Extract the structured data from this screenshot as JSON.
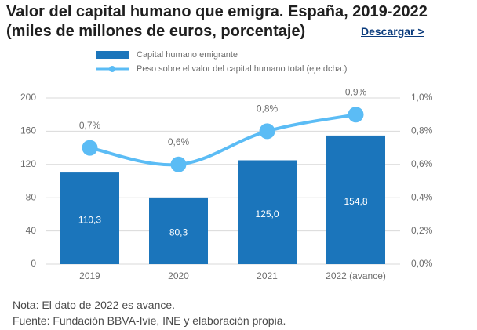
{
  "header": {
    "title_line1": "Valor del capital humano que emigra. España, 2019-2022",
    "title_line2": "(miles de millones de euros, porcentaje)",
    "download_label": "Descargar >"
  },
  "notes": {
    "note": "Nota: El dato de 2022 es avance.",
    "source": "Fuente:  Fundación BBVA-Ivie, INE y elaboración propia."
  },
  "colors": {
    "bar": "#1b75bb",
    "line": "#5bbcf5",
    "grid": "#d9d9d9",
    "axis_text": "#6d6d6d"
  },
  "chart_data": {
    "type": "bar",
    "categories": [
      "2019",
      "2020",
      "2021",
      "2022 (avance)"
    ],
    "series": [
      {
        "name": "Capital humano emigrante",
        "type": "bar",
        "axis": "left",
        "values": [
          110.3,
          80.3,
          125.0,
          154.8
        ],
        "labels": [
          "110,3",
          "80,3",
          "125,0",
          "154,8"
        ]
      },
      {
        "name": "Peso sobre el valor del capital humano total (eje dcha.)",
        "type": "line",
        "axis": "right",
        "values": [
          0.7,
          0.6,
          0.8,
          0.9
        ],
        "labels": [
          "0,7%",
          "0,6%",
          "0,8%",
          "0,9%"
        ]
      }
    ],
    "y_left": {
      "lim": [
        0,
        200
      ],
      "ticks": [
        0,
        40,
        80,
        120,
        160,
        200
      ],
      "tick_labels": [
        "0",
        "40",
        "80",
        "120",
        "160",
        "200"
      ]
    },
    "y_right": {
      "lim": [
        0,
        1.0
      ],
      "ticks": [
        0,
        0.2,
        0.4,
        0.6,
        0.8,
        1.0
      ],
      "tick_labels": [
        "0,0%",
        "0,2%",
        "0,4%",
        "0,6%",
        "0,8%",
        "1,0%"
      ]
    },
    "grid": true,
    "legend_position": "top-left"
  }
}
